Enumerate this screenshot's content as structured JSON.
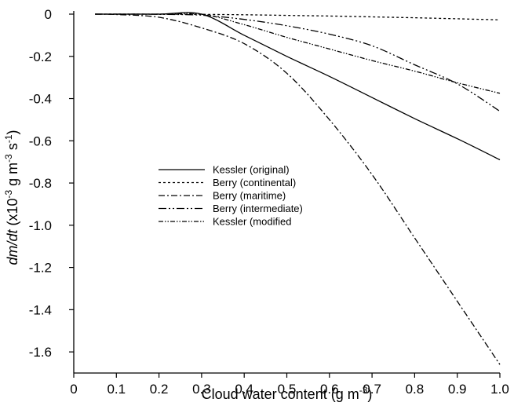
{
  "chart_data": {
    "type": "line",
    "title": "",
    "xlabel": "Cloud water content (g m",
    "xlabel_sup": "-3",
    "xlabel_end": ")",
    "ylabel_parts": {
      "italic": "dm/dt",
      "pre": " (x10",
      "sup1": "-3",
      "mid1": " g m",
      "sup2": "-3",
      "mid2": " s",
      "sup3": "-1",
      "end": ")"
    },
    "xlim": [
      0,
      1.0
    ],
    "ylim": [
      -1.7,
      0
    ],
    "x_ticks": [
      "0",
      "0.1",
      "0.2",
      "0.3",
      "0.4",
      "0.5",
      "0.6",
      "0.7",
      "0.8",
      "0.9",
      "1.0"
    ],
    "y_ticks": [
      "0",
      "-0.2",
      "-0.4",
      "-0.6",
      "-0.8",
      "-1.0",
      "-1.2",
      "-1.4",
      "-1.6"
    ],
    "grid": false,
    "legend_position": "center-left",
    "series": [
      {
        "name": "Kessler (original)",
        "dash": "",
        "color": "#000000",
        "x": [
          0.05,
          0.1,
          0.2,
          0.3,
          0.4,
          0.5,
          0.6,
          0.7,
          0.8,
          0.9,
          1.0
        ],
        "y": [
          0,
          0,
          0,
          0,
          -0.1,
          -0.2,
          -0.295,
          -0.395,
          -0.495,
          -0.59,
          -0.69
        ]
      },
      {
        "name": "Berry (continental)",
        "dash": "3,3",
        "color": "#000000",
        "x": [
          0.05,
          0.1,
          0.2,
          0.3,
          0.4,
          0.5,
          0.6,
          0.7,
          0.8,
          0.9,
          1.0
        ],
        "y": [
          0,
          0,
          0,
          -0.001,
          -0.003,
          -0.006,
          -0.009,
          -0.013,
          -0.017,
          -0.022,
          -0.027
        ]
      },
      {
        "name": "Berry (maritime)",
        "dash": "8,3,2,3",
        "color": "#000000",
        "x": [
          0.05,
          0.1,
          0.2,
          0.3,
          0.4,
          0.5,
          0.6,
          0.7,
          0.8,
          0.9,
          1.0
        ],
        "y": [
          0,
          -0.002,
          -0.015,
          -0.065,
          -0.14,
          -0.28,
          -0.5,
          -0.76,
          -1.06,
          -1.36,
          -1.66
        ]
      },
      {
        "name": "Berry (intermediate)",
        "dash": "10,3,2,3,2,3",
        "color": "#000000",
        "x": [
          0.05,
          0.1,
          0.2,
          0.3,
          0.4,
          0.5,
          0.6,
          0.7,
          0.8,
          0.9,
          1.0
        ],
        "y": [
          0,
          0,
          -0.001,
          -0.005,
          -0.025,
          -0.055,
          -0.095,
          -0.15,
          -0.24,
          -0.33,
          -0.46
        ]
      },
      {
        "name": "Kessler (modified",
        "dash": "6,2,1.5,2,1.5,2",
        "color": "#000000",
        "x": [
          0.05,
          0.1,
          0.2,
          0.3,
          0.4,
          0.5,
          0.6,
          0.7,
          0.8,
          0.9,
          1.0
        ],
        "y": [
          0,
          0,
          0,
          0,
          -0.05,
          -0.11,
          -0.165,
          -0.22,
          -0.27,
          -0.325,
          -0.375
        ]
      }
    ]
  }
}
